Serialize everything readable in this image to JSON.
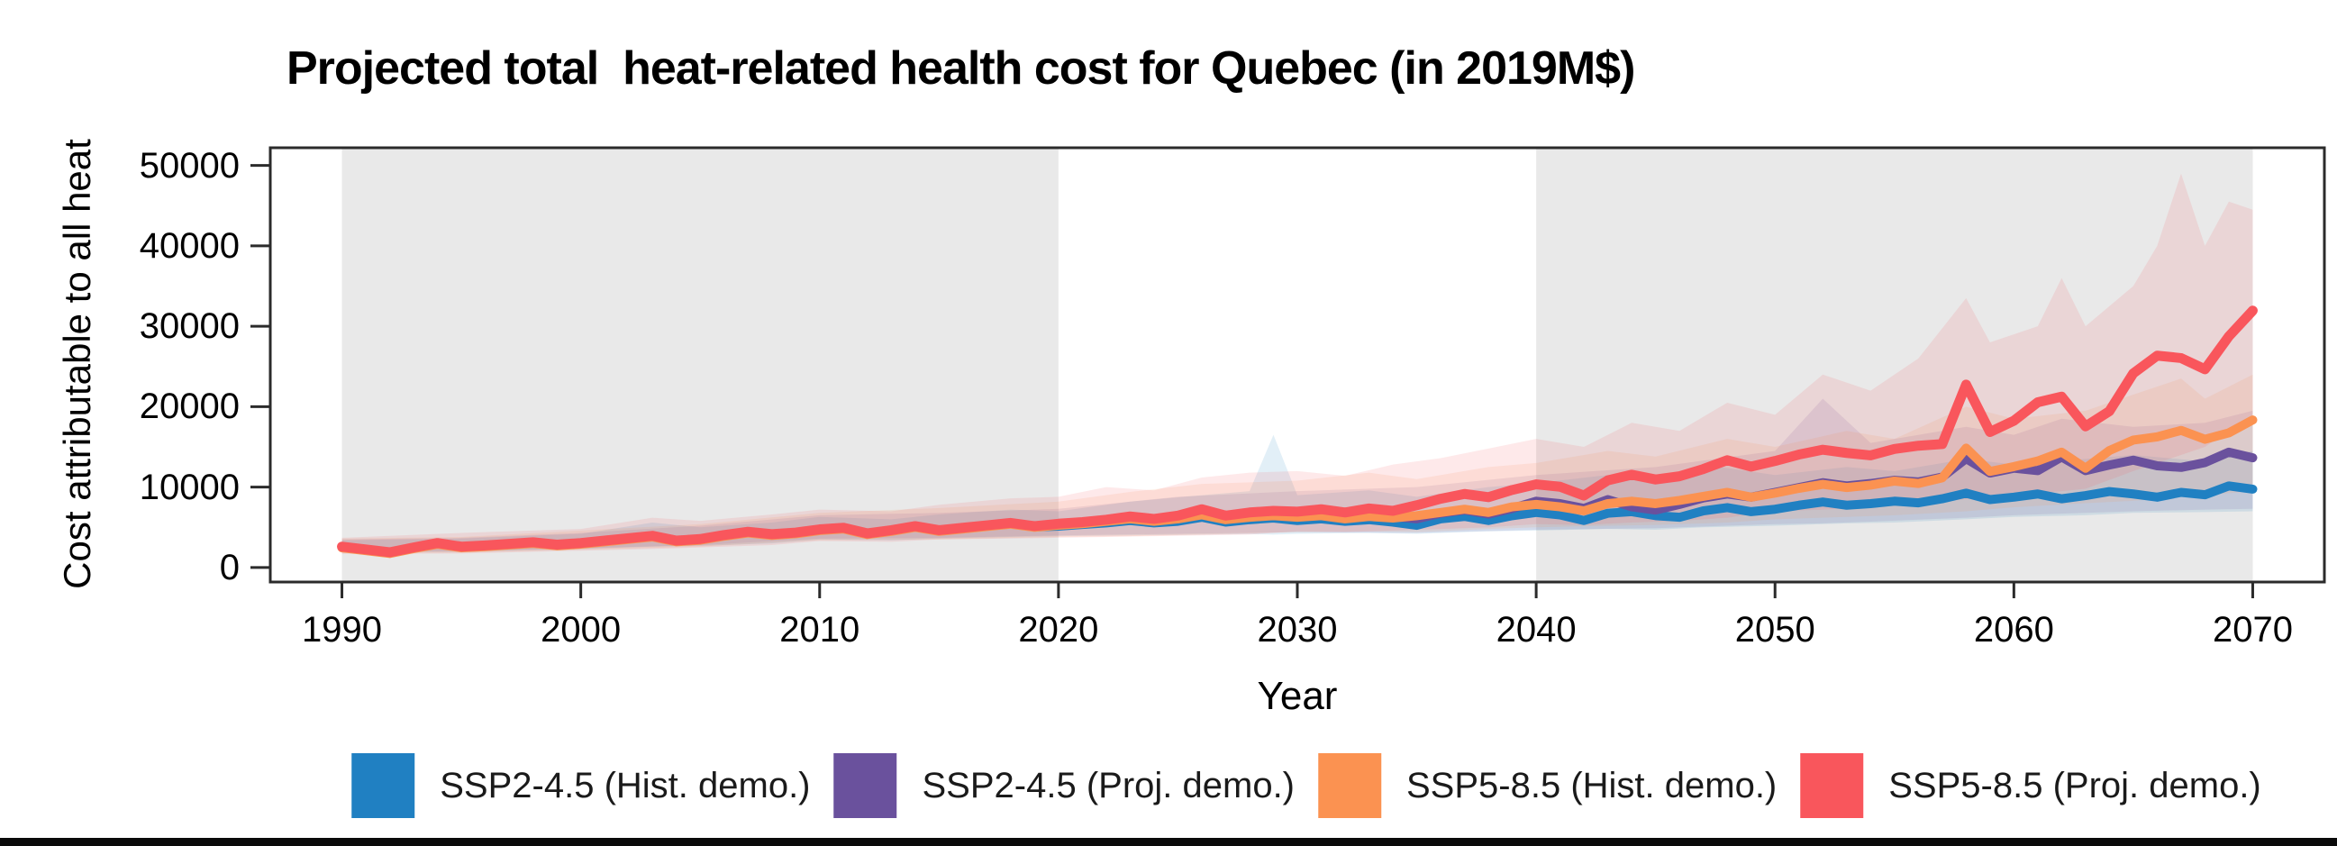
{
  "page": {
    "background": "#ffffff",
    "bottom_bar_color": "#0a0a0a",
    "spine_color": "#2b2b2b"
  },
  "chart_data": {
    "type": "line",
    "title": "Projected total  heat-related health cost for Quebec (in 2019M$)",
    "xlabel": "Year",
    "ylabel": "Cost attributable to all heat",
    "xlim": [
      1987,
      2073
    ],
    "ylim": [
      -1800,
      52200
    ],
    "xticks": [
      1990,
      2000,
      2010,
      2020,
      2030,
      2040,
      2050,
      2060,
      2070
    ],
    "yticks": [
      0,
      10000,
      20000,
      30000,
      40000,
      50000
    ],
    "grid": false,
    "legend_position": "bottom",
    "shaded_x_ranges": [
      [
        1990,
        2020
      ],
      [
        2040,
        2070
      ]
    ],
    "shaded_color": "#e9e9e9",
    "band_opacity": 0.13,
    "years": [
      1990,
      1991,
      1992,
      1993,
      1994,
      1995,
      1996,
      1997,
      1998,
      1999,
      2000,
      2001,
      2002,
      2003,
      2004,
      2005,
      2006,
      2007,
      2008,
      2009,
      2010,
      2011,
      2012,
      2013,
      2014,
      2015,
      2016,
      2017,
      2018,
      2019,
      2020,
      2021,
      2022,
      2023,
      2024,
      2025,
      2026,
      2027,
      2028,
      2029,
      2030,
      2031,
      2032,
      2033,
      2034,
      2035,
      2036,
      2037,
      2038,
      2039,
      2040,
      2041,
      2042,
      2043,
      2044,
      2045,
      2046,
      2047,
      2048,
      2049,
      2050,
      2051,
      2052,
      2053,
      2054,
      2055,
      2056,
      2057,
      2058,
      2059,
      2060,
      2061,
      2062,
      2063,
      2064,
      2065,
      2066,
      2067,
      2068,
      2069,
      2070
    ],
    "series": [
      {
        "name": "SSP2-4.5 (Hist. demo.)",
        "color": "#2080c2",
        "line_width": 10,
        "values": [
          2500,
          2150,
          1800,
          2400,
          2950,
          2500,
          2650,
          2850,
          3050,
          2750,
          2950,
          3250,
          3550,
          3850,
          3250,
          3450,
          3950,
          4350,
          4050,
          4250,
          4650,
          4850,
          4150,
          4550,
          5050,
          4550,
          4850,
          5150,
          5450,
          5050,
          5150,
          5350,
          5550,
          5850,
          5550,
          5750,
          6250,
          5650,
          5950,
          6150,
          5850,
          6050,
          5750,
          5950,
          5650,
          5250,
          6050,
          6350,
          5850,
          6450,
          6850,
          6550,
          5850,
          6750,
          6950,
          6450,
          6250,
          7050,
          7450,
          6950,
          7250,
          7750,
          8150,
          7750,
          7950,
          8250,
          8050,
          8550,
          9250,
          8450,
          8750,
          9150,
          8550,
          8950,
          9450,
          9150,
          8750,
          9350,
          9050,
          10150,
          9750
        ],
        "ci": {
          "years": [
            1990,
            1995,
            2000,
            2003,
            2005,
            2008,
            2010,
            2013,
            2015,
            2018,
            2020,
            2023,
            2026,
            2028,
            2029,
            2030,
            2033,
            2035,
            2038,
            2040,
            2043,
            2045,
            2047,
            2050,
            2053,
            2055,
            2058,
            2060,
            2063,
            2065,
            2068,
            2070
          ],
          "upper": [
            3400,
            3600,
            4200,
            5600,
            5000,
            5600,
            6300,
            6000,
            6600,
            7200,
            7000,
            8200,
            9000,
            9500,
            16500,
            9000,
            9600,
            8800,
            10000,
            10500,
            11500,
            10800,
            12800,
            11500,
            12500,
            12000,
            13500,
            12800,
            13500,
            14000,
            13200,
            14500
          ],
          "lower": [
            1900,
            1950,
            2300,
            2600,
            2700,
            3000,
            3500,
            3400,
            3600,
            3800,
            3900,
            4000,
            4100,
            4150,
            4100,
            4200,
            4300,
            4200,
            4500,
            4600,
            4800,
            4700,
            5000,
            5200,
            5500,
            5600,
            6000,
            6300,
            6500,
            6800,
            6900,
            7000
          ]
        }
      },
      {
        "name": "SSP2-4.5 (Proj. demo.)",
        "color": "#6a519d",
        "line_width": 10,
        "values": [
          2550,
          2200,
          1850,
          2450,
          3000,
          2550,
          2700,
          2900,
          3100,
          2800,
          3000,
          3300,
          3600,
          3900,
          3300,
          3500,
          4000,
          4400,
          4100,
          4300,
          4700,
          4900,
          4200,
          4600,
          5100,
          4600,
          4900,
          5200,
          5500,
          5100,
          5350,
          5550,
          5850,
          6150,
          5850,
          6150,
          6650,
          6050,
          6350,
          6650,
          6350,
          6650,
          6250,
          6550,
          6350,
          6050,
          6750,
          7150,
          6650,
          7350,
          8250,
          7950,
          7350,
          8450,
          7550,
          7150,
          7850,
          8650,
          9150,
          8750,
          9350,
          9950,
          10550,
          10150,
          10450,
          10850,
          10650,
          11250,
          13550,
          11750,
          12350,
          12050,
          13750,
          12050,
          12750,
          13350,
          12650,
          12450,
          13050,
          14350,
          13650
        ],
        "ci": {
          "years": [
            1990,
            1995,
            2000,
            2005,
            2010,
            2015,
            2020,
            2025,
            2030,
            2035,
            2040,
            2045,
            2050,
            2052,
            2054,
            2058,
            2060,
            2062,
            2065,
            2068,
            2070
          ],
          "upper": [
            3500,
            3700,
            4300,
            5200,
            6500,
            6800,
            7300,
            8800,
            9500,
            10000,
            11500,
            12500,
            14500,
            21000,
            15500,
            17500,
            16500,
            18500,
            17500,
            18000,
            19500
          ],
          "lower": [
            2000,
            2050,
            2400,
            2800,
            3600,
            3700,
            4000,
            4200,
            4400,
            4300,
            4700,
            4900,
            5400,
            5500,
            5700,
            6200,
            6500,
            6700,
            7000,
            7200,
            7300
          ]
        }
      },
      {
        "name": "SSP5-8.5 (Hist. demo.)",
        "color": "#fb9251",
        "line_width": 10,
        "values": [
          2450,
          2100,
          1750,
          2350,
          2900,
          2450,
          2600,
          2800,
          3000,
          2700,
          2900,
          3200,
          3500,
          3800,
          3200,
          3400,
          3900,
          4300,
          4000,
          4200,
          4600,
          4800,
          4100,
          4500,
          5000,
          4500,
          4800,
          5100,
          5400,
          5000,
          5250,
          5450,
          5750,
          6050,
          5750,
          6050,
          6550,
          5950,
          6250,
          6450,
          6250,
          6450,
          6050,
          6350,
          6150,
          6450,
          6850,
          7250,
          6850,
          7550,
          7850,
          7550,
          7050,
          7950,
          8250,
          7950,
          8350,
          8850,
          9350,
          8750,
          9250,
          9850,
          10350,
          9950,
          10250,
          10750,
          10450,
          11150,
          14850,
          11950,
          12550,
          13250,
          14350,
          12350,
          14550,
          15850,
          16250,
          17050,
          15950,
          16750,
          18350
        ],
        "ci": {
          "years": [
            1990,
            1995,
            2000,
            2005,
            2010,
            2015,
            2020,
            2023,
            2026,
            2030,
            2033,
            2035,
            2038,
            2040,
            2043,
            2045,
            2048,
            2050,
            2053,
            2055,
            2058,
            2060,
            2063,
            2065,
            2067,
            2068,
            2070
          ],
          "upper": [
            3600,
            3800,
            4600,
            5400,
            6800,
            7400,
            8200,
            9400,
            10400,
            10800,
            11800,
            11000,
            12500,
            13000,
            14500,
            13800,
            16000,
            15000,
            17000,
            16000,
            20000,
            18500,
            19500,
            21500,
            23500,
            21000,
            24000
          ],
          "lower": [
            1800,
            1850,
            2200,
            2600,
            3400,
            3500,
            3800,
            3900,
            4100,
            4400,
            4500,
            4400,
            4800,
            5000,
            5200,
            5300,
            5600,
            6000,
            6300,
            6500,
            7000,
            7500,
            8000,
            8300,
            8800,
            9000,
            9500
          ]
        }
      },
      {
        "name": "SSP5-8.5 (Proj. demo.)",
        "color": "#f9565c",
        "line_width": 11,
        "values": [
          2600,
          2250,
          1900,
          2500,
          3050,
          2600,
          2750,
          2950,
          3150,
          2850,
          3050,
          3350,
          3650,
          3950,
          3350,
          3550,
          4050,
          4450,
          4150,
          4350,
          4750,
          4950,
          4250,
          4650,
          5150,
          4650,
          4950,
          5250,
          5550,
          5150,
          5450,
          5650,
          5950,
          6350,
          6050,
          6450,
          7250,
          6450,
          6850,
          7050,
          6950,
          7250,
          6850,
          7350,
          7050,
          7750,
          8550,
          9150,
          8750,
          9650,
          10350,
          10050,
          8950,
          10850,
          11550,
          10950,
          11350,
          12250,
          13350,
          12550,
          13250,
          14050,
          14650,
          14250,
          13950,
          14750,
          15150,
          15350,
          22750,
          16850,
          18250,
          20550,
          21250,
          17550,
          19450,
          24150,
          26350,
          26050,
          24650,
          28750,
          31950
        ],
        "ci": {
          "years": [
            1990,
            1995,
            2000,
            2003,
            2005,
            2008,
            2010,
            2013,
            2015,
            2018,
            2020,
            2022,
            2024,
            2026,
            2028,
            2030,
            2032,
            2034,
            2036,
            2038,
            2040,
            2042,
            2044,
            2046,
            2048,
            2050,
            2052,
            2054,
            2056,
            2058,
            2059,
            2061,
            2062,
            2063,
            2065,
            2066,
            2067,
            2068,
            2069,
            2070
          ],
          "upper": [
            3700,
            4300,
            4800,
            6200,
            5800,
            6600,
            7200,
            7000,
            7800,
            8600,
            8800,
            10000,
            9600,
            11200,
            11800,
            12000,
            11400,
            12800,
            13600,
            14800,
            16000,
            15000,
            18000,
            17000,
            20500,
            19000,
            24000,
            22000,
            26000,
            33500,
            28000,
            30000,
            36000,
            30000,
            35000,
            40000,
            49000,
            40000,
            45500,
            44500
          ],
          "lower": [
            1700,
            1750,
            2100,
            2300,
            2500,
            2800,
            3300,
            3200,
            3500,
            3600,
            3700,
            3800,
            3900,
            4000,
            4100,
            4500,
            4400,
            4600,
            4800,
            5000,
            5400,
            5300,
            5600,
            5800,
            6200,
            7000,
            7200,
            7500,
            8000,
            8500,
            8800,
            9200,
            9500,
            9800,
            12000,
            13000,
            14000,
            15000,
            17000,
            19000
          ]
        }
      }
    ]
  }
}
